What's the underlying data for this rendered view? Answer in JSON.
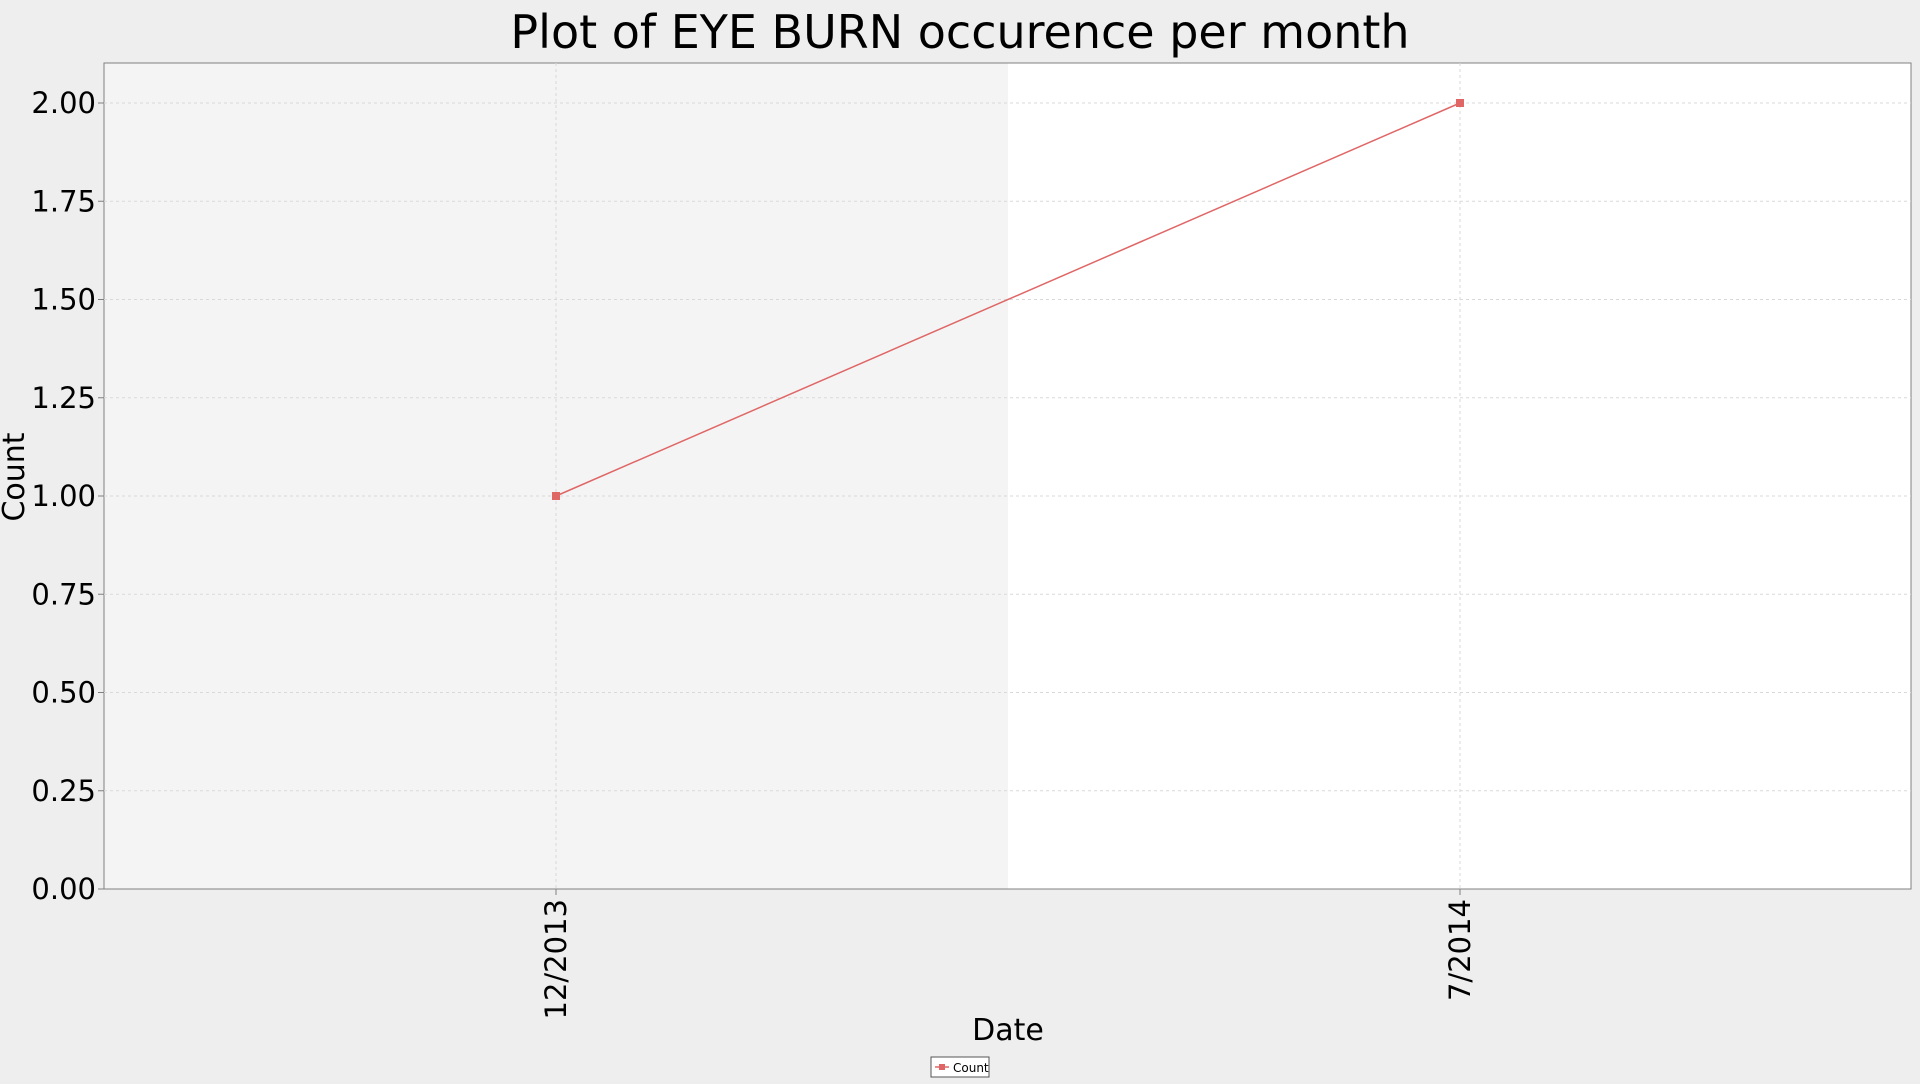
{
  "chart_data": {
    "type": "line",
    "title": "Plot of EYE BURN occurence per month",
    "xlabel": "Date",
    "ylabel": "Count",
    "categories": [
      "12/2013",
      "7/2014"
    ],
    "series": [
      {
        "name": "Count",
        "values": [
          1,
          2
        ],
        "color": "#e06666"
      }
    ],
    "ylim": [
      0,
      2
    ],
    "yticks": [
      0,
      0.25,
      0.5,
      0.75,
      1,
      1.25,
      1.5,
      1.75,
      2
    ],
    "ytick_labels": [
      "0.00",
      "0.25",
      "0.50",
      "0.75",
      "1.00",
      "1.25",
      "1.50",
      "1.75",
      "2.00"
    ],
    "grid": true,
    "legend_position": "bottom-center",
    "colors": {
      "page_background": "#eeeeee",
      "plot_band_shaded": "#f4f4f4",
      "plot_band_plain": "#ffffff",
      "grid": "#d9d9d9",
      "axis": "#808080"
    }
  }
}
